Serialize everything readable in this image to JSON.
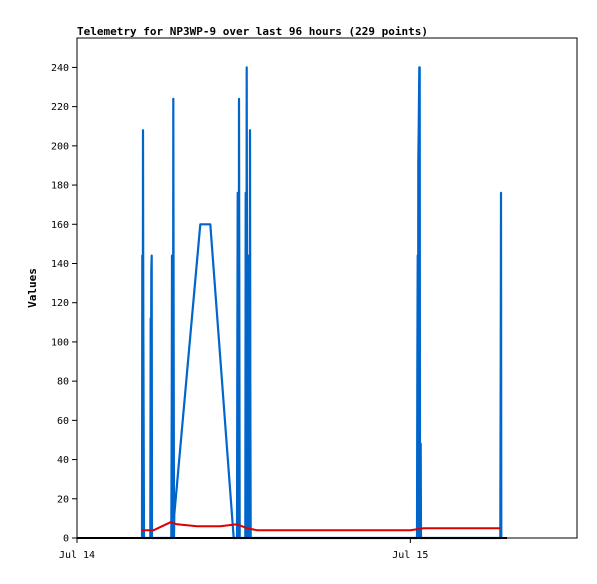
{
  "chart_data": {
    "type": "line",
    "title": "Telemetry for NP3WP-9 over last 96 hours (229 points)",
    "xlabel": "",
    "ylabel": "Values",
    "xlim": [
      0,
      1.5
    ],
    "ylim": [
      0,
      255
    ],
    "y_ticks": [
      0,
      20,
      40,
      60,
      80,
      100,
      120,
      140,
      160,
      180,
      200,
      220,
      240
    ],
    "x_ticks": [
      {
        "value": 0,
        "label": "Jul 14"
      },
      {
        "value": 1,
        "label": "Jul 15"
      }
    ],
    "grid": false,
    "legend": "none",
    "colors": {
      "blue": "#0066cc",
      "red": "#dd0000",
      "black": "#000000"
    },
    "series": [
      {
        "color": "#0066cc",
        "points": [
          [
            0.195,
            0
          ],
          [
            0.196,
            144
          ],
          [
            0.197,
            0
          ],
          [
            0.198,
            208
          ],
          [
            0.199,
            112
          ],
          [
            0.2,
            48
          ],
          [
            0.201,
            0
          ],
          [
            0.22,
            0
          ],
          [
            0.221,
            112
          ],
          [
            0.222,
            64
          ],
          [
            0.223,
            136
          ],
          [
            0.224,
            144
          ],
          [
            0.225,
            0
          ],
          [
            0.283,
            0
          ],
          [
            0.284,
            64
          ],
          [
            0.285,
            144
          ],
          [
            0.286,
            8
          ],
          [
            0.287,
            128
          ],
          [
            0.288,
            0
          ],
          [
            0.289,
            224
          ],
          [
            0.29,
            88
          ],
          [
            0.291,
            0
          ],
          [
            0.292,
            12
          ],
          [
            0.37,
            160
          ],
          [
            0.4,
            160
          ],
          [
            0.47,
            0
          ],
          [
            0.48,
            0
          ],
          [
            0.481,
            88
          ],
          [
            0.482,
            176
          ],
          [
            0.483,
            48
          ],
          [
            0.484,
            176
          ],
          [
            0.485,
            0
          ],
          [
            0.486,
            224
          ],
          [
            0.487,
            136
          ],
          [
            0.488,
            0
          ],
          [
            0.505,
            0
          ],
          [
            0.506,
            176
          ],
          [
            0.507,
            168
          ],
          [
            0.508,
            0
          ],
          [
            0.509,
            240
          ],
          [
            0.51,
            144
          ],
          [
            0.511,
            72
          ],
          [
            0.512,
            0
          ],
          [
            0.513,
            144
          ],
          [
            0.514,
            72
          ],
          [
            0.515,
            0
          ],
          [
            0.516,
            80
          ],
          [
            0.517,
            112
          ],
          [
            0.518,
            0
          ],
          [
            0.519,
            208
          ],
          [
            0.52,
            80
          ],
          [
            0.521,
            0
          ],
          [
            1.02,
            0
          ],
          [
            1.021,
            80
          ],
          [
            1.022,
            144
          ],
          [
            1.023,
            0
          ],
          [
            1.024,
            192
          ],
          [
            1.025,
            208
          ],
          [
            1.026,
            224
          ],
          [
            1.027,
            240
          ],
          [
            1.028,
            240
          ],
          [
            1.029,
            0
          ],
          [
            1.03,
            0
          ],
          [
            1.031,
            48
          ],
          [
            1.032,
            0
          ],
          [
            1.27,
            0
          ],
          [
            1.271,
            88
          ],
          [
            1.272,
            176
          ],
          [
            1.273,
            0
          ]
        ]
      },
      {
        "color": "#dd0000",
        "points": [
          [
            0.195,
            4
          ],
          [
            0.23,
            4
          ],
          [
            0.28,
            8
          ],
          [
            0.3,
            7
          ],
          [
            0.36,
            6
          ],
          [
            0.43,
            6
          ],
          [
            0.48,
            7
          ],
          [
            0.51,
            5
          ],
          [
            0.54,
            4
          ],
          [
            1.0,
            4
          ],
          [
            1.04,
            5
          ],
          [
            1.27,
            5
          ]
        ]
      },
      {
        "color": "#000000",
        "points": [
          [
            0,
            0
          ],
          [
            1.29,
            0
          ]
        ]
      }
    ]
  }
}
